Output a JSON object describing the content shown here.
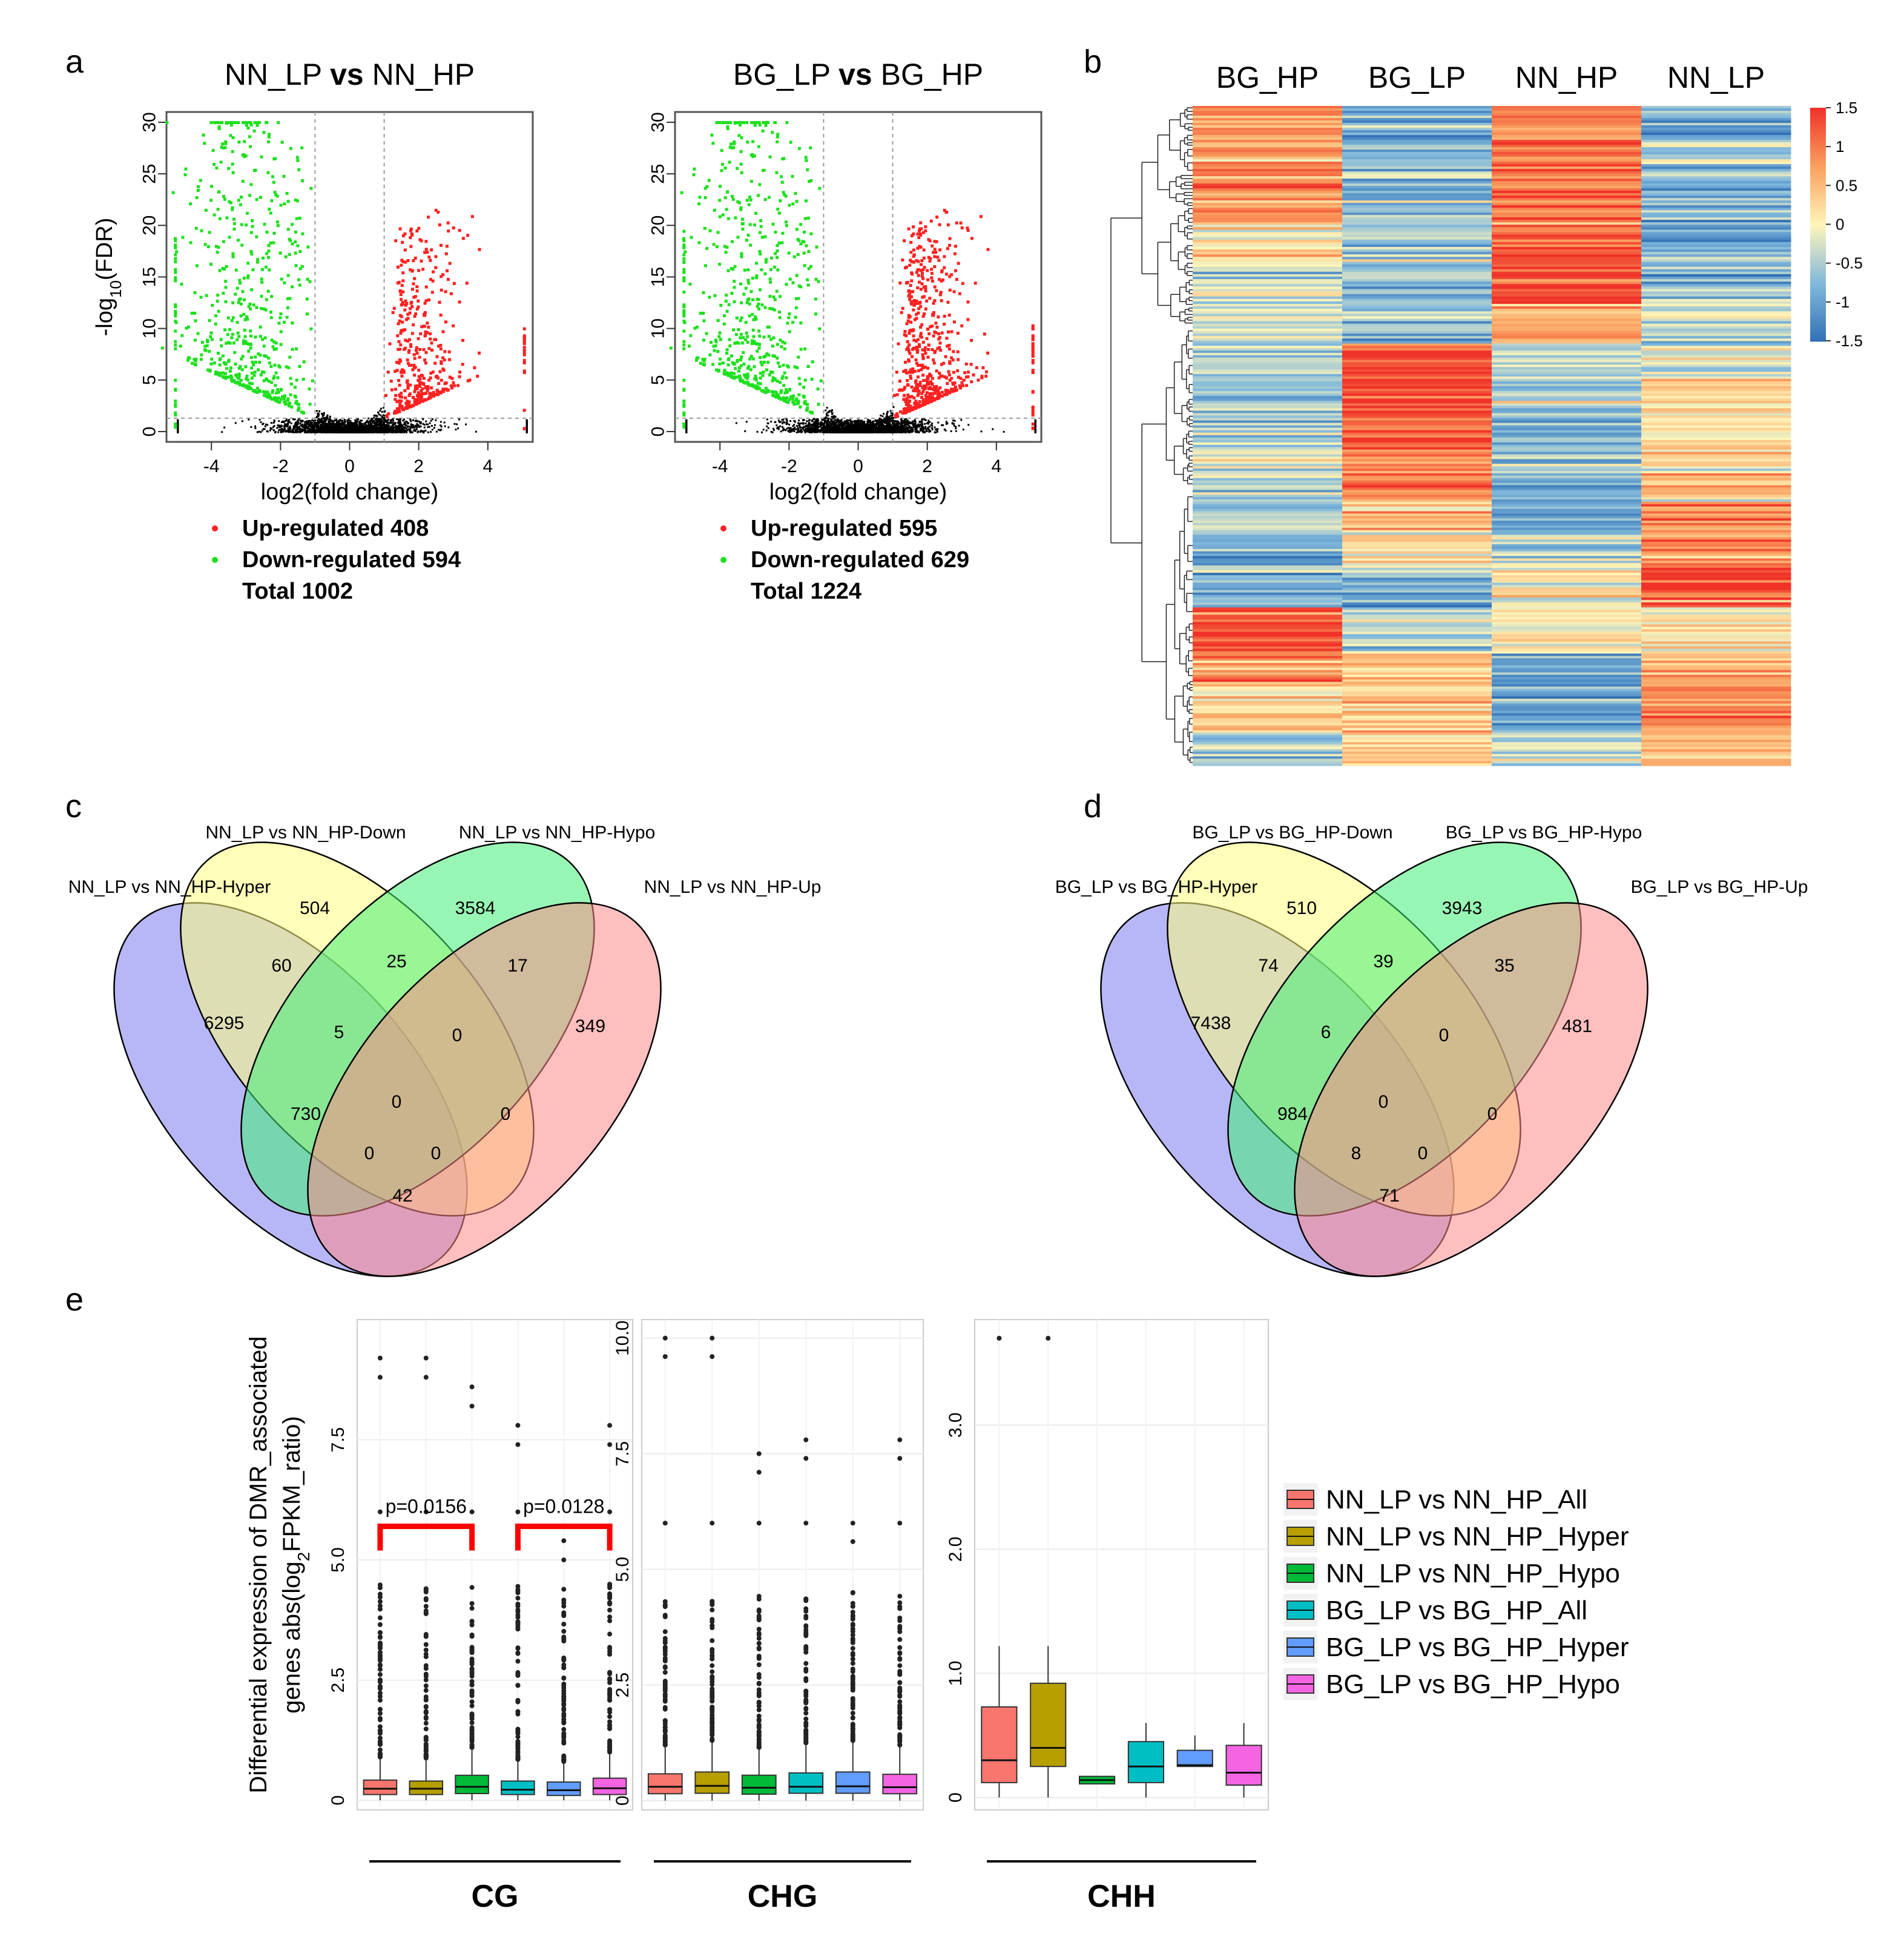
{
  "panel_labels": {
    "a": "a",
    "b": "b",
    "c": "c",
    "d": "d",
    "e": "e"
  },
  "colors": {
    "up": "#ff2020",
    "down": "#1ee01e",
    "ns": "#000000",
    "venn_blue": "#7b7bf0",
    "venn_yellow": "#ffff80",
    "venn_green": "#44ee77",
    "venn_pink": "#ff8a8a",
    "box_colors": [
      "#f8766d",
      "#b79f00",
      "#00ba38",
      "#00bfc4",
      "#619cff",
      "#f564e3"
    ],
    "bracket": "#ff0000"
  },
  "chart_data": [
    {
      "type": "scatter",
      "id": "volcano-nn",
      "title_parts": [
        "NN_LP ",
        "vs",
        " NN_HP"
      ],
      "xlabel": "log2(fold change)",
      "ylabel_parts": [
        "-log",
        "10",
        "(FDR)"
      ],
      "xlim": [
        -5.3,
        5.3
      ],
      "ylim": [
        -1,
        31
      ],
      "xticks": [
        -4,
        -2,
        0,
        2,
        4
      ],
      "yticks": [
        0,
        5,
        10,
        15,
        20,
        25,
        30
      ],
      "xtick_labels": [
        "-4",
        "-2",
        "0",
        "2",
        "4"
      ],
      "ytick_labels": [
        "0",
        "5",
        "10",
        "15",
        "20",
        "25",
        "30"
      ],
      "fc_threshold": 1,
      "fdr_threshold": 1.3,
      "legend": [
        {
          "name": "Up-regulated",
          "count": "408"
        },
        {
          "name": "Down-regulated",
          "count": "594"
        },
        {
          "name": "Total",
          "count": "1002"
        }
      ],
      "series": [
        {
          "name": "Up-regulated",
          "count": 408
        },
        {
          "name": "Down-regulated",
          "count": 594
        }
      ]
    },
    {
      "type": "scatter",
      "id": "volcano-bg",
      "title_parts": [
        "BG_LP ",
        "vs",
        " BG_HP"
      ],
      "xlabel": "log2(fold change)",
      "ylabel_parts": [
        "",
        "",
        ""
      ],
      "xlim": [
        -5.3,
        5.3
      ],
      "ylim": [
        -1,
        31
      ],
      "xticks": [
        -4,
        -2,
        0,
        2,
        4
      ],
      "yticks": [
        0,
        5,
        10,
        15,
        20,
        25,
        30
      ],
      "xtick_labels": [
        "-4",
        "-2",
        "0",
        "2",
        "4"
      ],
      "ytick_labels": [
        "0",
        "5",
        "10",
        "15",
        "20",
        "25",
        "30"
      ],
      "fc_threshold": 1,
      "fdr_threshold": 1.3,
      "legend": [
        {
          "name": "Up-regulated",
          "count": "595"
        },
        {
          "name": "Down-regulated",
          "count": "629"
        },
        {
          "name": "Total",
          "count": "1224"
        }
      ],
      "series": [
        {
          "name": "Up-regulated",
          "count": 595
        },
        {
          "name": "Down-regulated",
          "count": 629
        }
      ]
    },
    {
      "type": "heatmap",
      "id": "heatmap",
      "columns": [
        "BG_HP",
        "BG_LP",
        "NN_HP",
        "NN_LP"
      ],
      "scale_ticks": [
        "1.5",
        "1",
        "0.5",
        "0",
        "-0.5",
        "-1",
        "-1.5"
      ],
      "scale_range": [
        -1.5,
        1.5
      ],
      "clusters": [
        {
          "frac": 0.18,
          "values": [
            0.8,
            -0.8,
            1.0,
            -0.8
          ]
        },
        {
          "frac": 0.06,
          "values": [
            0.1,
            -0.5,
            1.3,
            -1.0
          ]
        },
        {
          "frac": 0.06,
          "values": [
            -0.2,
            -0.7,
            1.4,
            -0.7
          ]
        },
        {
          "frac": 0.06,
          "values": [
            -0.4,
            -0.6,
            0.6,
            -0.4
          ]
        },
        {
          "frac": 0.05,
          "values": [
            -0.5,
            1.4,
            -0.5,
            -0.3
          ]
        },
        {
          "frac": 0.1,
          "values": [
            -0.6,
            1.3,
            -0.6,
            0.2
          ]
        },
        {
          "frac": 0.09,
          "values": [
            -0.3,
            1.0,
            -0.6,
            0.3
          ]
        },
        {
          "frac": 0.05,
          "values": [
            -0.5,
            0.4,
            -0.7,
            0.8
          ]
        },
        {
          "frac": 0.05,
          "values": [
            -1.0,
            0.2,
            -0.3,
            0.7
          ]
        },
        {
          "frac": 0.06,
          "values": [
            -0.8,
            -0.8,
            0.1,
            1.4
          ]
        },
        {
          "frac": 0.07,
          "values": [
            1.3,
            -0.4,
            0.1,
            0.1
          ]
        },
        {
          "frac": 0.05,
          "values": [
            0.6,
            0.5,
            -1.0,
            0.6
          ]
        },
        {
          "frac": 0.07,
          "values": [
            0.4,
            0.4,
            -1.0,
            0.9
          ]
        },
        {
          "frac": 0.05,
          "values": [
            -0.5,
            0.3,
            -0.5,
            0.6
          ]
        }
      ]
    },
    {
      "type": "venn",
      "id": "venn-c",
      "set_labels": [
        "NN_LP vs NN_HP-Hyper",
        "NN_LP vs NN_HP-Down",
        "NN_LP vs NN_HP-Hypo",
        "NN_LP vs NN_HP-Up"
      ],
      "regions": {
        "Hyper": "6295",
        "Down": "504",
        "Hypo": "3584",
        "Up": "349",
        "Hyper_Down": "60",
        "Down_Hypo": "25",
        "Hypo_Up": "17",
        "Hyper_Down_Hypo": "5",
        "Down_Hypo_Up": "0",
        "Hyper_Hypo": "730",
        "all": "0",
        "Down_Up": "0",
        "Hyper_Hypo_Up": "0",
        "Hyper_Down_Up": "0",
        "Hyper_Up": "42"
      }
    },
    {
      "type": "venn",
      "id": "venn-d",
      "set_labels": [
        "BG_LP vs BG_HP-Hyper",
        "BG_LP vs BG_HP-Down",
        "BG_LP vs BG_HP-Hypo",
        "BG_LP vs BG_HP-Up"
      ],
      "regions": {
        "Hyper": "7438",
        "Down": "510",
        "Hypo": "3943",
        "Up": "481",
        "Hyper_Down": "74",
        "Down_Hypo": "39",
        "Hypo_Up": "35",
        "Hyper_Down_Hypo": "6",
        "Down_Hypo_Up": "0",
        "Hyper_Hypo": "984",
        "all": "0",
        "Down_Up": "0",
        "Hyper_Hypo_Up": "8",
        "Hyper_Down_Up": "0",
        "Hyper_Up": "71"
      }
    },
    {
      "type": "box",
      "id": "boxplots",
      "ylabel_line1": "Differential expression of DMR_associated",
      "ylabel_line2_parts": [
        "genes abs(log",
        "2",
        "FPKM_ratio)"
      ],
      "series_names": [
        "NN_LP vs NN_HP_All",
        "NN_LP vs NN_HP_Hyper",
        "NN_LP vs NN_HP_Hypo",
        "BG_LP vs BG_HP_All",
        "BG_LP vs BG_HP_Hyper",
        "BG_LP vs BG_HP_Hypo"
      ],
      "facets": [
        {
          "label": "CG",
          "ylim": [
            -0.2,
            10.0
          ],
          "yticks": [
            0,
            2.5,
            5.0,
            7.5
          ],
          "ytick_labels": [
            "0",
            "2.5",
            "5.0",
            "7.5"
          ],
          "boxes": [
            {
              "q1": 0.12,
              "median": 0.24,
              "q3": 0.42,
              "whisker_low": 0,
              "whisker_high": 0.9
            },
            {
              "q1": 0.12,
              "median": 0.24,
              "q3": 0.4,
              "whisker_low": 0,
              "whisker_high": 0.85
            },
            {
              "q1": 0.14,
              "median": 0.28,
              "q3": 0.52,
              "whisker_low": 0,
              "whisker_high": 1.1
            },
            {
              "q1": 0.12,
              "median": 0.22,
              "q3": 0.4,
              "whisker_low": 0,
              "whisker_high": 0.85
            },
            {
              "q1": 0.1,
              "median": 0.21,
              "q3": 0.38,
              "whisker_low": 0,
              "whisker_high": 0.8
            },
            {
              "q1": 0.12,
              "median": 0.25,
              "q3": 0.46,
              "whisker_low": 0,
              "whisker_high": 1.0
            }
          ],
          "outlier_max": [
            9.2,
            9.2,
            8.6,
            7.8,
            5.4,
            7.8
          ],
          "annotations": [
            {
              "text": "p=0.0156",
              "from": 0,
              "to": 2,
              "y": 5.7
            },
            {
              "text": "p=0.0128",
              "from": 3,
              "to": 5,
              "y": 5.7
            }
          ]
        },
        {
          "label": "CHG",
          "ylim": [
            -0.2,
            10.4
          ],
          "yticks": [
            0,
            2.5,
            5.0,
            7.5,
            10.0
          ],
          "ytick_labels": [
            "0",
            "2.5",
            "5.0",
            "7.5",
            "10.0"
          ],
          "boxes": [
            {
              "q1": 0.15,
              "median": 0.3,
              "q3": 0.58,
              "whisker_low": 0,
              "whisker_high": 1.2
            },
            {
              "q1": 0.16,
              "median": 0.32,
              "q3": 0.62,
              "whisker_low": 0,
              "whisker_high": 1.3
            },
            {
              "q1": 0.14,
              "median": 0.28,
              "q3": 0.55,
              "whisker_low": 0,
              "whisker_high": 1.15
            },
            {
              "q1": 0.16,
              "median": 0.3,
              "q3": 0.6,
              "whisker_low": 0,
              "whisker_high": 1.25
            },
            {
              "q1": 0.16,
              "median": 0.31,
              "q3": 0.62,
              "whisker_low": 0,
              "whisker_high": 1.3
            },
            {
              "q1": 0.15,
              "median": 0.29,
              "q3": 0.57,
              "whisker_low": 0,
              "whisker_high": 1.2
            }
          ],
          "outlier_max": [
            10.0,
            10.0,
            7.5,
            7.8,
            6.0,
            7.8
          ],
          "annotations": []
        },
        {
          "label": "CHH",
          "ylim": [
            -0.1,
            3.85
          ],
          "yticks": [
            0,
            1.0,
            2.0,
            3.0
          ],
          "ytick_labels": [
            "0",
            "1.0",
            "2.0",
            "3.0"
          ],
          "boxes": [
            {
              "q1": 0.12,
              "median": 0.3,
              "q3": 0.73,
              "whisker_low": 0,
              "whisker_high": 1.22
            },
            {
              "q1": 0.25,
              "median": 0.4,
              "q3": 0.92,
              "whisker_low": 0,
              "whisker_high": 1.22
            },
            {
              "q1": 0.11,
              "median": 0.14,
              "q3": 0.17,
              "whisker_low": 0.11,
              "whisker_high": 0.17
            },
            {
              "q1": 0.12,
              "median": 0.25,
              "q3": 0.45,
              "whisker_low": 0,
              "whisker_high": 0.6
            },
            {
              "q1": 0.25,
              "median": 0.26,
              "q3": 0.38,
              "whisker_low": 0.25,
              "whisker_high": 0.5
            },
            {
              "q1": 0.1,
              "median": 0.2,
              "q3": 0.42,
              "whisker_low": 0,
              "whisker_high": 0.6
            }
          ],
          "outlier_max": [
            3.7,
            3.7,
            null,
            null,
            null,
            null
          ],
          "annotations": []
        }
      ]
    }
  ]
}
